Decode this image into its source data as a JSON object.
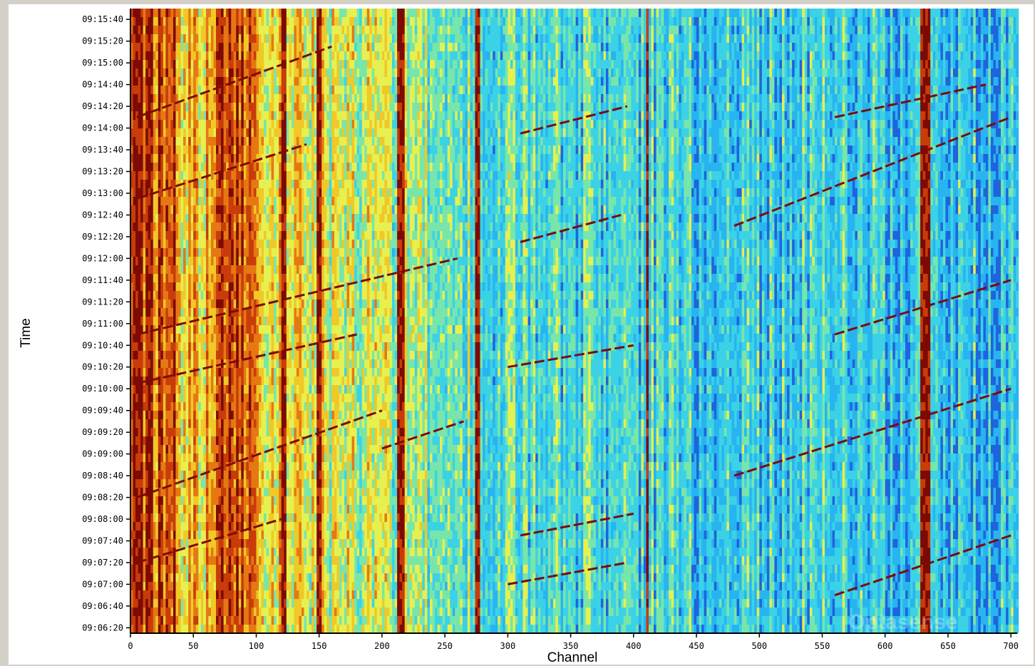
{
  "chart_data": {
    "type": "heatmap",
    "title": "",
    "xlabel": "Channel",
    "ylabel": "Time",
    "xlim": [
      0,
      705
    ],
    "ylim": [
      "09:06:15",
      "09:15:50"
    ],
    "grid": false,
    "legend": "none",
    "x_ticks": [
      0,
      50,
      100,
      150,
      200,
      250,
      300,
      350,
      400,
      450,
      500,
      550,
      600,
      650,
      700
    ],
    "y_ticks": [
      "09:06:20",
      "09:06:40",
      "09:07:00",
      "09:07:20",
      "09:07:40",
      "09:08:00",
      "09:08:20",
      "09:08:40",
      "09:09:00",
      "09:09:20",
      "09:09:40",
      "09:10:00",
      "09:10:20",
      "09:10:40",
      "09:11:00",
      "09:11:20",
      "09:11:40",
      "09:12:00",
      "09:12:20",
      "09:12:40",
      "09:13:00",
      "09:13:20",
      "09:13:40",
      "09:14:00",
      "09:14:20",
      "09:14:40",
      "09:15:00",
      "09:15:20",
      "09:15:40"
    ],
    "colormap": [
      "#1e64dc",
      "#28b4f0",
      "#3cd2e6",
      "#78e6aa",
      "#e6f050",
      "#f0c828",
      "#e67814",
      "#c83c0a",
      "#7d0a05"
    ],
    "intensity_profile": [
      {
        "channel": 0,
        "level": 0.98
      },
      {
        "channel": 10,
        "level": 0.82
      },
      {
        "channel": 40,
        "level": 0.62
      },
      {
        "channel": 70,
        "level": 0.72
      },
      {
        "channel": 90,
        "level": 0.8
      },
      {
        "channel": 100,
        "level": 0.62
      },
      {
        "channel": 130,
        "level": 0.56
      },
      {
        "channel": 160,
        "level": 0.5
      },
      {
        "channel": 200,
        "level": 0.45
      },
      {
        "channel": 240,
        "level": 0.4
      },
      {
        "channel": 280,
        "level": 0.33
      },
      {
        "channel": 330,
        "level": 0.28
      },
      {
        "channel": 400,
        "level": 0.26
      },
      {
        "channel": 450,
        "level": 0.22
      },
      {
        "channel": 520,
        "level": 0.24
      },
      {
        "channel": 560,
        "level": 0.27
      },
      {
        "channel": 600,
        "level": 0.22
      },
      {
        "channel": 650,
        "level": 0.2
      },
      {
        "channel": 705,
        "level": 0.18
      }
    ],
    "hot_channels": [
      3,
      8,
      15,
      22,
      34,
      72,
      78,
      84,
      88,
      121,
      149,
      213,
      216,
      275,
      410,
      629,
      633
    ],
    "diagonal_tracks": [
      {
        "c0": 5,
        "c1": 260,
        "t0": "09:10:50",
        "t1": "09:12:00"
      },
      {
        "c0": 5,
        "c1": 180,
        "t0": "09:10:05",
        "t1": "09:10:50"
      },
      {
        "c0": 5,
        "c1": 140,
        "t0": "09:12:55",
        "t1": "09:13:45"
      },
      {
        "c0": 5,
        "c1": 160,
        "t0": "09:14:10",
        "t1": "09:15:15"
      },
      {
        "c0": 5,
        "c1": 200,
        "t0": "09:08:20",
        "t1": "09:09:40"
      },
      {
        "c0": 5,
        "c1": 120,
        "t0": "09:07:20",
        "t1": "09:08:00"
      },
      {
        "c0": 200,
        "c1": 265,
        "t0": "09:09:05",
        "t1": "09:09:30"
      },
      {
        "c0": 310,
        "c1": 395,
        "t0": "09:13:55",
        "t1": "09:14:20"
      },
      {
        "c0": 310,
        "c1": 390,
        "t0": "09:12:15",
        "t1": "09:12:40"
      },
      {
        "c0": 300,
        "c1": 400,
        "t0": "09:10:20",
        "t1": "09:10:40"
      },
      {
        "c0": 310,
        "c1": 400,
        "t0": "09:07:45",
        "t1": "09:08:05"
      },
      {
        "c0": 300,
        "c1": 395,
        "t0": "09:07:00",
        "t1": "09:07:20"
      },
      {
        "c0": 480,
        "c1": 700,
        "t0": "09:12:30",
        "t1": "09:14:10"
      },
      {
        "c0": 560,
        "c1": 700,
        "t0": "09:10:50",
        "t1": "09:11:40"
      },
      {
        "c0": 480,
        "c1": 700,
        "t0": "09:08:40",
        "t1": "09:10:00"
      },
      {
        "c0": 560,
        "c1": 700,
        "t0": "09:06:50",
        "t1": "09:07:45"
      },
      {
        "c0": 560,
        "c1": 680,
        "t0": "09:14:10",
        "t1": "09:14:40"
      }
    ]
  },
  "watermark": "Optasense"
}
